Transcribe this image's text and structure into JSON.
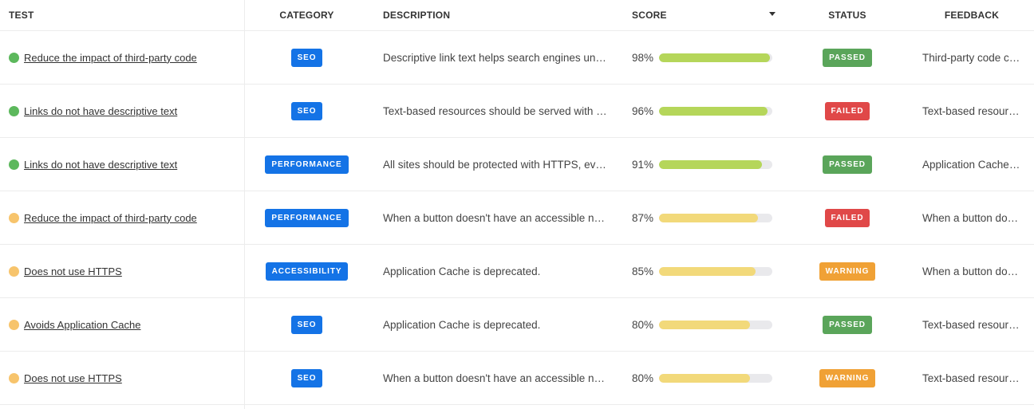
{
  "headers": {
    "test": "TEST",
    "category": "CATEGORY",
    "description": "DESCRIPTION",
    "score": "SCORE",
    "status": "STATUS",
    "feedback": "FEEDBACK"
  },
  "colors": {
    "dot_green": "#5cb85c",
    "dot_yellow": "#f7c46c",
    "bar_green": "#b5d65a",
    "bar_yellow": "#f2d97a",
    "category_blue": "#1473e6",
    "status_passed": "#5aa55a",
    "status_failed": "#e04848",
    "status_warning": "#f0a135"
  },
  "rows": [
    {
      "dot": "green",
      "test": "Reduce the impact of third-party code",
      "category": "SEO",
      "description": "Descriptive link text helps search engines understand your content.",
      "score_text": "98%",
      "score": 0.98,
      "bar": "green",
      "status": "PASSED",
      "status_type": "passed",
      "feedback": "Third-party code can significantly impact load performance."
    },
    {
      "dot": "green",
      "test": "Links do not have descriptive text",
      "category": "SEO",
      "description": "Text-based resources should be served with compression.",
      "score_text": "96%",
      "score": 0.96,
      "bar": "green",
      "status": "FAILED",
      "status_type": "failed",
      "feedback": "Text-based resources should be served with compression."
    },
    {
      "dot": "green",
      "test": "Links do not have descriptive text",
      "category": "PERFORMANCE",
      "description": "All sites should be protected with HTTPS, even ones that don't handle sensitive data.",
      "score_text": "91%",
      "score": 0.91,
      "bar": "green",
      "status": "PASSED",
      "status_type": "passed",
      "feedback": "Application Cache is deprecated."
    },
    {
      "dot": "yellow",
      "test": "Reduce the impact of third-party code",
      "category": "PERFORMANCE",
      "description": "When a button doesn't have an accessible name, screen readers announce it as button.",
      "score_text": "87%",
      "score": 0.87,
      "bar": "yellow",
      "status": "FAILED",
      "status_type": "failed",
      "feedback": "When a button doesn't have an accessible name."
    },
    {
      "dot": "yellow",
      "test": "Does not use HTTPS",
      "category": "ACCESSIBILITY",
      "description": "Application Cache is deprecated.",
      "score_text": "85%",
      "score": 0.85,
      "bar": "yellow",
      "status": "WARNING",
      "status_type": "warning",
      "feedback": "When a button doesn't have an accessible name."
    },
    {
      "dot": "yellow",
      "test": "Avoids Application Cache",
      "category": "SEO",
      "description": "Application Cache is deprecated.",
      "score_text": "80%",
      "score": 0.8,
      "bar": "yellow",
      "status": "PASSED",
      "status_type": "passed",
      "feedback": "Text-based resources should be served with compression."
    },
    {
      "dot": "yellow",
      "test": "Does not use HTTPS",
      "category": "SEO",
      "description": "When a button doesn't have an accessible name, screen readers announce it as button.",
      "score_text": "80%",
      "score": 0.8,
      "bar": "yellow",
      "status": "WARNING",
      "status_type": "warning",
      "feedback": "Text-based resources should be served with compression."
    }
  ]
}
